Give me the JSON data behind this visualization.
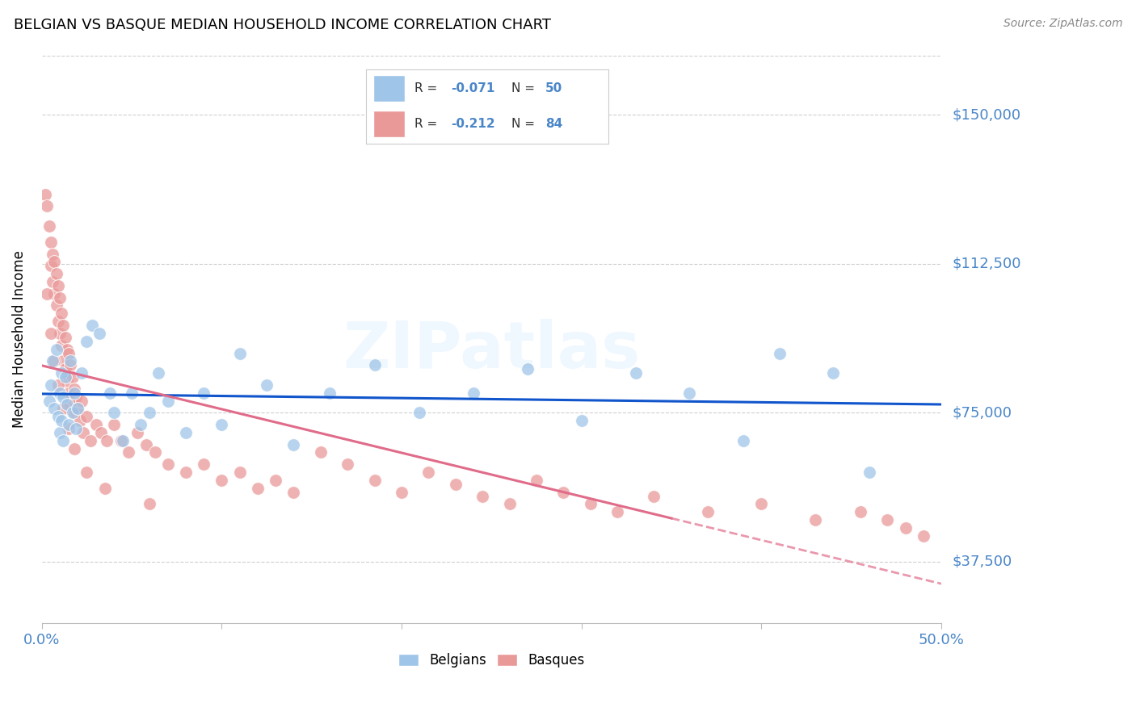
{
  "title": "BELGIAN VS BASQUE MEDIAN HOUSEHOLD INCOME CORRELATION CHART",
  "source": "Source: ZipAtlas.com",
  "ylabel": "Median Household Income",
  "xlim": [
    0.0,
    0.5
  ],
  "ylim": [
    22000,
    165000
  ],
  "yticks": [
    37500,
    75000,
    112500,
    150000
  ],
  "ytick_labels": [
    "$37,500",
    "$75,000",
    "$112,500",
    "$150,000"
  ],
  "xticks": [
    0.0,
    0.1,
    0.2,
    0.3,
    0.4,
    0.5
  ],
  "xtick_labels": [
    "0.0%",
    "",
    "",
    "",
    "",
    "50.0%"
  ],
  "blue_color": "#9fc5e8",
  "pink_color": "#ea9999",
  "line_blue": "#1155cc",
  "line_pink": "#e06c8a",
  "text_color": "#4a86c8",
  "watermark": "ZIPatlas",
  "background_color": "#ffffff",
  "grid_color": "#bbbbbb",
  "belgians_x": [
    0.004,
    0.005,
    0.006,
    0.007,
    0.008,
    0.009,
    0.01,
    0.01,
    0.011,
    0.011,
    0.012,
    0.012,
    0.013,
    0.014,
    0.015,
    0.016,
    0.017,
    0.018,
    0.019,
    0.02,
    0.022,
    0.025,
    0.028,
    0.032,
    0.038,
    0.04,
    0.045,
    0.05,
    0.055,
    0.06,
    0.065,
    0.07,
    0.08,
    0.09,
    0.1,
    0.11,
    0.125,
    0.14,
    0.16,
    0.185,
    0.21,
    0.24,
    0.27,
    0.3,
    0.33,
    0.36,
    0.39,
    0.41,
    0.44,
    0.46
  ],
  "belgians_y": [
    78000,
    82000,
    88000,
    76000,
    91000,
    74000,
    80000,
    70000,
    85000,
    73000,
    79000,
    68000,
    84000,
    77000,
    72000,
    88000,
    75000,
    80000,
    71000,
    76000,
    85000,
    93000,
    97000,
    95000,
    80000,
    75000,
    68000,
    80000,
    72000,
    75000,
    85000,
    78000,
    70000,
    80000,
    72000,
    90000,
    82000,
    67000,
    80000,
    87000,
    75000,
    80000,
    86000,
    73000,
    85000,
    80000,
    68000,
    90000,
    85000,
    60000
  ],
  "basques_x": [
    0.002,
    0.003,
    0.004,
    0.005,
    0.005,
    0.006,
    0.006,
    0.007,
    0.007,
    0.008,
    0.008,
    0.009,
    0.009,
    0.01,
    0.01,
    0.011,
    0.011,
    0.012,
    0.012,
    0.013,
    0.013,
    0.014,
    0.014,
    0.015,
    0.015,
    0.016,
    0.016,
    0.017,
    0.018,
    0.018,
    0.019,
    0.02,
    0.021,
    0.022,
    0.023,
    0.025,
    0.027,
    0.03,
    0.033,
    0.036,
    0.04,
    0.044,
    0.048,
    0.053,
    0.058,
    0.063,
    0.07,
    0.08,
    0.09,
    0.1,
    0.11,
    0.12,
    0.13,
    0.14,
    0.155,
    0.17,
    0.185,
    0.2,
    0.215,
    0.23,
    0.245,
    0.26,
    0.275,
    0.29,
    0.305,
    0.32,
    0.34,
    0.37,
    0.4,
    0.43,
    0.455,
    0.47,
    0.48,
    0.49,
    0.003,
    0.005,
    0.007,
    0.009,
    0.012,
    0.015,
    0.018,
    0.025,
    0.035,
    0.06
  ],
  "basques_y": [
    130000,
    127000,
    122000,
    118000,
    112000,
    115000,
    108000,
    113000,
    105000,
    110000,
    102000,
    107000,
    98000,
    104000,
    95000,
    100000,
    92000,
    97000,
    88000,
    94000,
    86000,
    91000,
    83000,
    90000,
    80000,
    87000,
    77000,
    84000,
    81000,
    75000,
    79000,
    76000,
    73000,
    78000,
    70000,
    74000,
    68000,
    72000,
    70000,
    68000,
    72000,
    68000,
    65000,
    70000,
    67000,
    65000,
    62000,
    60000,
    62000,
    58000,
    60000,
    56000,
    58000,
    55000,
    65000,
    62000,
    58000,
    55000,
    60000,
    57000,
    54000,
    52000,
    58000,
    55000,
    52000,
    50000,
    54000,
    50000,
    52000,
    48000,
    50000,
    48000,
    46000,
    44000,
    105000,
    95000,
    88000,
    82000,
    76000,
    71000,
    66000,
    60000,
    56000,
    52000
  ],
  "blue_line_x0": 0.0,
  "blue_line_x1": 0.5,
  "blue_line_y0": 77500,
  "blue_line_y1": 74500,
  "pink_line_x0": 0.0,
  "pink_line_x1": 0.35,
  "pink_line_xd0": 0.35,
  "pink_line_xd1": 0.5,
  "pink_line_y0": 80000,
  "pink_line_y1": 52000,
  "pink_line_yd0": 52000,
  "pink_line_yd1": 40000
}
